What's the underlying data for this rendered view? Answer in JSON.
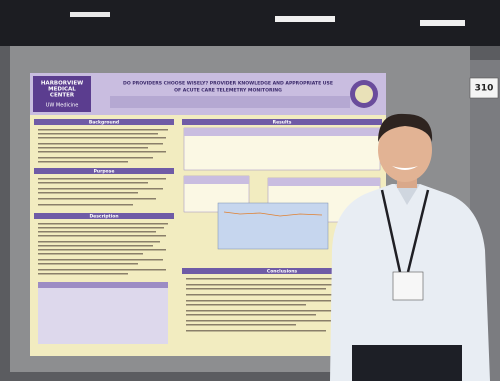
{
  "booth_number": "310",
  "header": {
    "title_lines": [
      "DO PROVIDERS CHOOSE WISELY? PROVIDER KNOWLEDGE AND APPROPRIATE USE",
      "OF ACUTE CARE TELEMETRY MONITORING"
    ],
    "logo_name": [
      "HARBORVIEW",
      "MEDICAL",
      "CENTER"
    ],
    "logo_affiliation": "UW Medicine"
  },
  "sections": {
    "background": "Background",
    "purpose": "Purpose",
    "description": "Description",
    "results": "Results",
    "conclusions": "Conclusions"
  }
}
